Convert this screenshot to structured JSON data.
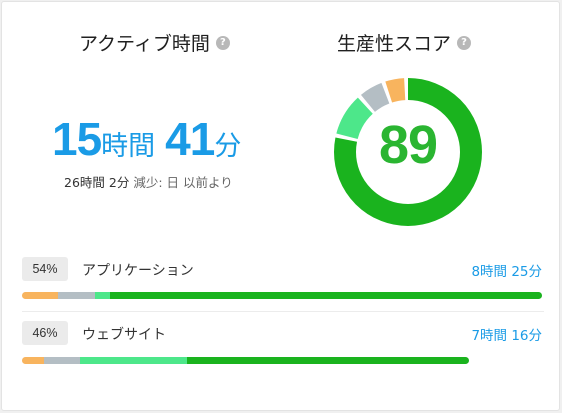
{
  "colors": {
    "accent_blue": "#1a9be6",
    "very_productive": "#1ab31e",
    "productive": "#4de78a",
    "neutral": "#b4bec4",
    "distracting": "#f8b45e",
    "score_text": "#2ab531"
  },
  "active_time": {
    "title": "アクティブ時間",
    "help_icon": "question-circle-icon",
    "hours_value": "15",
    "hours_unit": "時間",
    "minutes_value": "41",
    "minutes_unit": "分",
    "compare_duration": "26時間 2分",
    "compare_change": "減少",
    "compare_reference": ": 日 以前より"
  },
  "productivity": {
    "title": "生産性スコア",
    "help_icon": "question-circle-icon",
    "score": "89",
    "breakdown_fractions": {
      "very_productive": 0.79,
      "productive": 0.1,
      "neutral": 0.06,
      "distracting": 0.05
    }
  },
  "categories": [
    {
      "percent": "54%",
      "label": "アプリケーション",
      "time": "8時間 25分",
      "bar_length_fraction": 1.0,
      "segments": {
        "distracting": 0.07,
        "neutral": 0.07,
        "productive": 0.03,
        "very_productive": 0.83
      }
    },
    {
      "percent": "46%",
      "label": "ウェブサイト",
      "time": "7時間 16分",
      "bar_length_fraction": 0.86,
      "segments": {
        "distracting": 0.05,
        "neutral": 0.08,
        "productive": 0.24,
        "very_productive": 0.63
      }
    }
  ]
}
